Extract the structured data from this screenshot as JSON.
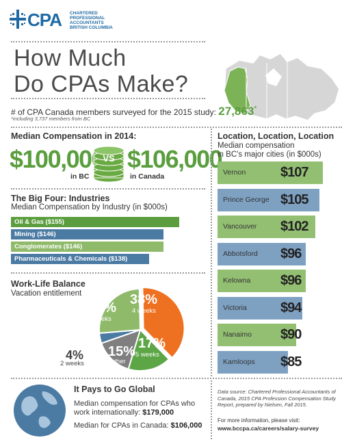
{
  "logo": {
    "word": "CPA",
    "lines": [
      "CHARTERED",
      "PROFESSIONAL",
      "ACCOUNTANTS",
      "BRITISH COLUMBIA"
    ]
  },
  "title": {
    "line1": "How Much",
    "line2": "Do CPAs Make?"
  },
  "survey": {
    "text": "# of CPA Canada members surveyed for the 2015 study:",
    "value": "27,863",
    "marker": "*",
    "note": "*including 3,737 members from BC"
  },
  "median": {
    "heading": "Median Compensation in 2014:",
    "bc_value": "$100,000",
    "bc_label": "in BC",
    "vs": "VS",
    "canada_value": "$106,000",
    "canada_label": "in Canada"
  },
  "chart_data": [
    {
      "type": "bar",
      "title": "The Big Four: Industries",
      "subtitle": "Median Compensation by Industry (in $000s)",
      "categories": [
        "Oil & Gas ($155)",
        "Mining ($146)",
        "Conglomerates ($146)",
        "Pharmaceuticals & Chemicals ($138)"
      ],
      "values": [
        155,
        146,
        146,
        138
      ],
      "colors": [
        "#5c9e3f",
        "#4b7aa3",
        "#8fba6a",
        "#4b7aa3"
      ],
      "orientation": "horizontal"
    },
    {
      "type": "pie",
      "title": "Work-Life Balance",
      "subtitle": "Vacation entitlement",
      "slices": [
        {
          "pct": "38%",
          "label": "4 weeks",
          "value": 38,
          "color": "#ee7121"
        },
        {
          "pct": "17%",
          "label": "5 weeks",
          "value": 17,
          "color": "#5ca646"
        },
        {
          "pct": "15%",
          "label": "other",
          "value": 15,
          "color": "#7f7f7f"
        },
        {
          "pct": "4%",
          "label": "2 weeks",
          "value": 4,
          "color": "#4b7aa3"
        },
        {
          "pct": "26%",
          "label": "3 weeks",
          "value": 26,
          "color": "#8fba6a"
        }
      ]
    },
    {
      "type": "bar",
      "title": "Location, Location, Location",
      "subtitle_line1": "Median compensation",
      "subtitle_line2": "in BC's major cities (in $000s)",
      "categories": [
        "Vernon",
        "Prince George",
        "Vancouver",
        "Abbotsford",
        "Kelowna",
        "Victoria",
        "Nanaimo",
        "Kamloops"
      ],
      "value_labels": [
        "$107",
        "$105",
        "$102",
        "$96",
        "$96",
        "$94",
        "$90",
        "$85"
      ],
      "values": [
        107,
        105,
        102,
        96,
        96,
        94,
        90,
        85
      ],
      "colors": [
        "#93bf72",
        "#7ea1c2",
        "#93bf72",
        "#7ea1c2",
        "#93bf72",
        "#7ea1c2",
        "#93bf72",
        "#7ea1c2"
      ],
      "orientation": "horizontal"
    }
  ],
  "global": {
    "heading": "It Pays to Go Global",
    "line1": "Median compensation for CPAs who",
    "line2_text": "work internationally:",
    "line2_value": "$179,000",
    "line3_text": "Median for CPAs in Canada:",
    "line3_value": "$106,000"
  },
  "source": "Data source: Chartered Professional Accountants of Canada, 2015 CPA Profession Compensation Study Report, prepared by Nielsen, Fall 2015.",
  "more": {
    "line1": "For more information, please visit:",
    "url": "www.bccpa.ca/careers/salary-survey"
  }
}
